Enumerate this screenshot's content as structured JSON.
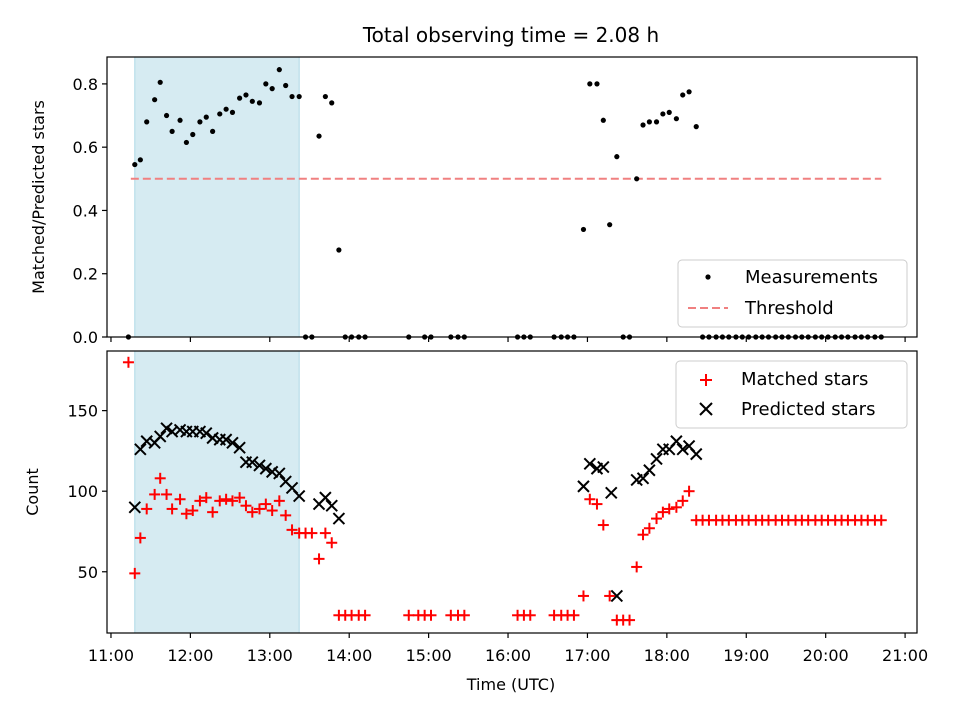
{
  "title": "Total observing time = 2.08 h",
  "colors": {
    "highlight": "#add8e6",
    "threshold": "#f08080",
    "measurements": "#000000",
    "matched": "#ff0000",
    "predicted": "#000000"
  },
  "chart_data": [
    {
      "type": "scatter",
      "title": "Total observing time = 2.08 h",
      "xlabel": "",
      "ylabel": "Matched/Predicted stars",
      "xlim": [
        10.95,
        21.15
      ],
      "ylim": [
        0.0,
        0.885
      ],
      "yticks": [
        0.0,
        0.2,
        0.4,
        0.6,
        0.8
      ],
      "ytick_labels": [
        "0.0",
        "0.2",
        "0.4",
        "0.6",
        "0.8"
      ],
      "highlight_span": [
        11.3,
        13.37
      ],
      "threshold": {
        "y": 0.5,
        "x": [
          11.25,
          20.7
        ],
        "style": "dashed"
      },
      "legend": {
        "position": "lower-right",
        "entries": [
          "Measurements",
          "Threshold"
        ]
      },
      "series": [
        {
          "name": "Measurements",
          "marker": "dot",
          "points": [
            [
              11.22,
              0.0
            ],
            [
              11.3,
              0.545
            ],
            [
              11.37,
              0.56
            ],
            [
              11.45,
              0.68
            ],
            [
              11.55,
              0.75
            ],
            [
              11.62,
              0.805
            ],
            [
              11.7,
              0.7
            ],
            [
              11.77,
              0.65
            ],
            [
              11.87,
              0.685
            ],
            [
              11.95,
              0.615
            ],
            [
              12.03,
              0.64
            ],
            [
              12.12,
              0.68
            ],
            [
              12.2,
              0.695
            ],
            [
              12.28,
              0.65
            ],
            [
              12.37,
              0.705
            ],
            [
              12.45,
              0.72
            ],
            [
              12.53,
              0.71
            ],
            [
              12.62,
              0.755
            ],
            [
              12.7,
              0.765
            ],
            [
              12.78,
              0.745
            ],
            [
              12.87,
              0.74
            ],
            [
              12.95,
              0.8
            ],
            [
              13.03,
              0.785
            ],
            [
              13.12,
              0.845
            ],
            [
              13.2,
              0.795
            ],
            [
              13.28,
              0.76
            ],
            [
              13.37,
              0.76
            ],
            [
              13.45,
              0.0
            ],
            [
              13.53,
              0.0
            ],
            [
              13.62,
              0.635
            ],
            [
              13.7,
              0.76
            ],
            [
              13.78,
              0.74
            ],
            [
              13.87,
              0.275
            ],
            [
              13.95,
              0.0
            ],
            [
              14.03,
              0.0
            ],
            [
              14.12,
              0.0
            ],
            [
              14.2,
              0.0
            ],
            [
              14.75,
              0.0
            ],
            [
              14.95,
              0.0
            ],
            [
              15.03,
              0.0
            ],
            [
              15.28,
              0.0
            ],
            [
              15.37,
              0.0
            ],
            [
              15.45,
              0.0
            ],
            [
              16.12,
              0.0
            ],
            [
              16.2,
              0.0
            ],
            [
              16.28,
              0.0
            ],
            [
              16.58,
              0.0
            ],
            [
              16.67,
              0.0
            ],
            [
              16.75,
              0.0
            ],
            [
              16.83,
              0.0
            ],
            [
              16.95,
              0.34
            ],
            [
              17.03,
              0.8
            ],
            [
              17.12,
              0.8
            ],
            [
              17.2,
              0.685
            ],
            [
              17.28,
              0.355
            ],
            [
              17.37,
              0.57
            ],
            [
              17.45,
              0.0
            ],
            [
              17.53,
              0.0
            ],
            [
              17.62,
              0.5
            ],
            [
              17.7,
              0.67
            ],
            [
              17.78,
              0.68
            ],
            [
              17.87,
              0.68
            ],
            [
              17.95,
              0.705
            ],
            [
              18.03,
              0.71
            ],
            [
              18.12,
              0.69
            ],
            [
              18.2,
              0.765
            ],
            [
              18.28,
              0.775
            ],
            [
              18.37,
              0.665
            ],
            [
              18.45,
              0.0
            ],
            [
              18.53,
              0.0
            ],
            [
              18.62,
              0.0
            ],
            [
              18.7,
              0.0
            ],
            [
              18.78,
              0.0
            ],
            [
              18.87,
              0.0
            ],
            [
              18.95,
              0.0
            ],
            [
              19.03,
              0.0
            ],
            [
              19.12,
              0.0
            ],
            [
              19.2,
              0.0
            ],
            [
              19.28,
              0.0
            ],
            [
              19.37,
              0.0
            ],
            [
              19.45,
              0.0
            ],
            [
              19.53,
              0.0
            ],
            [
              19.62,
              0.0
            ],
            [
              19.7,
              0.0
            ],
            [
              19.78,
              0.0
            ],
            [
              19.87,
              0.0
            ],
            [
              19.95,
              0.0
            ],
            [
              20.03,
              0.0
            ],
            [
              20.12,
              0.0
            ],
            [
              20.2,
              0.0
            ],
            [
              20.28,
              0.0
            ],
            [
              20.37,
              0.0
            ],
            [
              20.45,
              0.0
            ],
            [
              20.53,
              0.0
            ],
            [
              20.62,
              0.0
            ],
            [
              20.7,
              0.0
            ]
          ]
        }
      ]
    },
    {
      "type": "scatter",
      "title": "",
      "xlabel": "Time (UTC)",
      "ylabel": "Count",
      "xlim": [
        10.95,
        21.15
      ],
      "ylim": [
        12,
        187
      ],
      "yticks": [
        50,
        100,
        150
      ],
      "ytick_labels": [
        "50",
        "100",
        "150"
      ],
      "xticks": [
        11,
        12,
        13,
        14,
        15,
        16,
        17,
        18,
        19,
        20,
        21
      ],
      "xtick_labels": [
        "11:00",
        "12:00",
        "13:00",
        "14:00",
        "15:00",
        "16:00",
        "17:00",
        "18:00",
        "19:00",
        "20:00",
        "21:00"
      ],
      "highlight_span": [
        11.3,
        13.37
      ],
      "legend": {
        "position": "upper-right",
        "entries": [
          "Matched stars",
          "Predicted stars"
        ]
      },
      "series": [
        {
          "name": "Matched stars",
          "marker": "plus",
          "points": [
            [
              11.22,
              180
            ],
            [
              11.3,
              49
            ],
            [
              11.37,
              71
            ],
            [
              11.45,
              89
            ],
            [
              11.55,
              98
            ],
            [
              11.62,
              108
            ],
            [
              11.7,
              98
            ],
            [
              11.77,
              89
            ],
            [
              11.87,
              95
            ],
            [
              11.95,
              86
            ],
            [
              12.03,
              88
            ],
            [
              12.12,
              94
            ],
            [
              12.2,
              96
            ],
            [
              12.28,
              87
            ],
            [
              12.37,
              94
            ],
            [
              12.45,
              95
            ],
            [
              12.53,
              94
            ],
            [
              12.62,
              96
            ],
            [
              12.7,
              91
            ],
            [
              12.78,
              87
            ],
            [
              12.87,
              89
            ],
            [
              12.95,
              92
            ],
            [
              13.03,
              88
            ],
            [
              13.12,
              94
            ],
            [
              13.2,
              85
            ],
            [
              13.28,
              76
            ],
            [
              13.37,
              74
            ],
            [
              13.45,
              74
            ],
            [
              13.53,
              74
            ],
            [
              13.62,
              58
            ],
            [
              13.7,
              74
            ],
            [
              13.78,
              68
            ],
            [
              13.87,
              23
            ],
            [
              13.95,
              23
            ],
            [
              14.03,
              23
            ],
            [
              14.12,
              23
            ],
            [
              14.2,
              23
            ],
            [
              14.75,
              23
            ],
            [
              14.87,
              23
            ],
            [
              14.95,
              23
            ],
            [
              15.03,
              23
            ],
            [
              15.28,
              23
            ],
            [
              15.37,
              23
            ],
            [
              15.45,
              23
            ],
            [
              16.12,
              23
            ],
            [
              16.2,
              23
            ],
            [
              16.28,
              23
            ],
            [
              16.58,
              23
            ],
            [
              16.67,
              23
            ],
            [
              16.75,
              23
            ],
            [
              16.83,
              23
            ],
            [
              16.95,
              35
            ],
            [
              17.03,
              95
            ],
            [
              17.12,
              92
            ],
            [
              17.2,
              79
            ],
            [
              17.28,
              35
            ],
            [
              17.37,
              20
            ],
            [
              17.45,
              20
            ],
            [
              17.53,
              20
            ],
            [
              17.62,
              53
            ],
            [
              17.7,
              73
            ],
            [
              17.78,
              77
            ],
            [
              17.87,
              83
            ],
            [
              17.95,
              87
            ],
            [
              18.03,
              89
            ],
            [
              18.12,
              90
            ],
            [
              18.2,
              94
            ],
            [
              18.28,
              100
            ],
            [
              18.37,
              82
            ],
            [
              18.45,
              82
            ],
            [
              18.53,
              82
            ],
            [
              18.62,
              82
            ],
            [
              18.7,
              82
            ],
            [
              18.78,
              82
            ],
            [
              18.87,
              82
            ],
            [
              18.95,
              82
            ],
            [
              19.03,
              82
            ],
            [
              19.12,
              82
            ],
            [
              19.2,
              82
            ],
            [
              19.28,
              82
            ],
            [
              19.37,
              82
            ],
            [
              19.45,
              82
            ],
            [
              19.53,
              82
            ],
            [
              19.62,
              82
            ],
            [
              19.7,
              82
            ],
            [
              19.78,
              82
            ],
            [
              19.87,
              82
            ],
            [
              19.95,
              82
            ],
            [
              20.03,
              82
            ],
            [
              20.12,
              82
            ],
            [
              20.2,
              82
            ],
            [
              20.28,
              82
            ],
            [
              20.37,
              82
            ],
            [
              20.45,
              82
            ],
            [
              20.53,
              82
            ],
            [
              20.62,
              82
            ],
            [
              20.7,
              82
            ]
          ]
        },
        {
          "name": "Predicted stars",
          "marker": "x",
          "points": [
            [
              11.3,
              90
            ],
            [
              11.37,
              126
            ],
            [
              11.45,
              131
            ],
            [
              11.55,
              130
            ],
            [
              11.62,
              134
            ],
            [
              11.7,
              139
            ],
            [
              11.77,
              137
            ],
            [
              11.87,
              138
            ],
            [
              11.95,
              137
            ],
            [
              12.03,
              137
            ],
            [
              12.12,
              137
            ],
            [
              12.2,
              136
            ],
            [
              12.28,
              133
            ],
            [
              12.37,
              132
            ],
            [
              12.45,
              132
            ],
            [
              12.53,
              130
            ],
            [
              12.62,
              127
            ],
            [
              12.7,
              118
            ],
            [
              12.78,
              118
            ],
            [
              12.87,
              116
            ],
            [
              12.95,
              114
            ],
            [
              13.03,
              112
            ],
            [
              13.12,
              111
            ],
            [
              13.2,
              106
            ],
            [
              13.28,
              102
            ],
            [
              13.37,
              97
            ],
            [
              13.62,
              92
            ],
            [
              13.7,
              96
            ],
            [
              13.78,
              91
            ],
            [
              13.87,
              83
            ],
            [
              16.95,
              103
            ],
            [
              17.03,
              117
            ],
            [
              17.12,
              114
            ],
            [
              17.2,
              115
            ],
            [
              17.3,
              99
            ],
            [
              17.37,
              35
            ],
            [
              17.62,
              107
            ],
            [
              17.7,
              108
            ],
            [
              17.78,
              113
            ],
            [
              17.87,
              120
            ],
            [
              17.95,
              126
            ],
            [
              18.03,
              126
            ],
            [
              18.12,
              131
            ],
            [
              18.2,
              126
            ],
            [
              18.28,
              128
            ],
            [
              18.37,
              123
            ]
          ]
        }
      ]
    }
  ]
}
